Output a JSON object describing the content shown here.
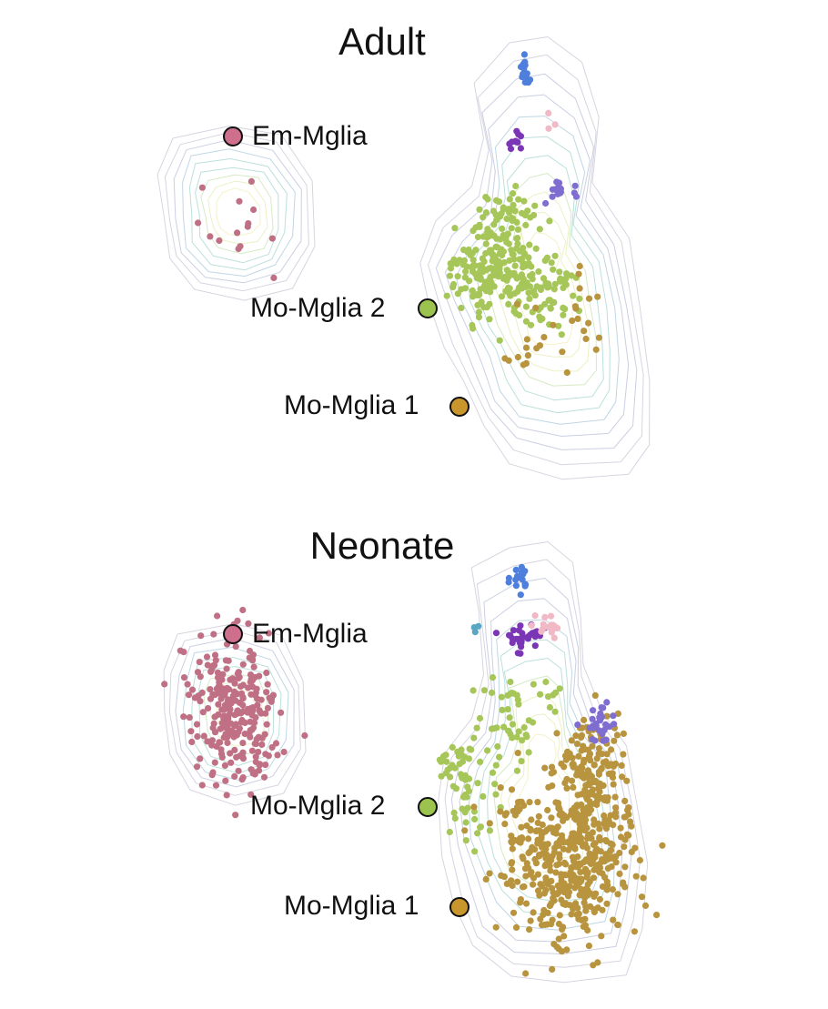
{
  "chart_data": [
    {
      "type": "scatter",
      "title": "Adult",
      "legend": [
        {
          "name": "Em-Mglia",
          "color": "#cd6f8d"
        },
        {
          "name": "Mo-Mglia 2",
          "color": "#9cc34d"
        },
        {
          "name": "Mo-Mglia 1",
          "color": "#c9962e"
        }
      ],
      "series": [
        {
          "name": "Em-Mglia",
          "color": "#c07084",
          "count": 14
        },
        {
          "name": "Mo-Mglia 2",
          "color": "#a6c659",
          "count": 300
        },
        {
          "name": "Mo-Mglia 1",
          "color": "#b8943e",
          "count": 30
        },
        {
          "color": "#4f7fdc",
          "count": 14
        },
        {
          "color": "#7a36b5",
          "count": 10
        },
        {
          "color": "#7f6dd0",
          "count": 14
        },
        {
          "color": "#f0b9c5",
          "count": 3
        }
      ]
    },
    {
      "type": "scatter",
      "title": "Neonate",
      "legend": [
        {
          "name": "Em-Mglia",
          "color": "#cd6f8d"
        },
        {
          "name": "Mo-Mglia 2",
          "color": "#9cc34d"
        },
        {
          "name": "Mo-Mglia 1",
          "color": "#c9962e"
        }
      ],
      "series": [
        {
          "name": "Em-Mglia",
          "color": "#c07084",
          "count": 260
        },
        {
          "name": "Mo-Mglia 2",
          "color": "#a6c659",
          "count": 110
        },
        {
          "name": "Mo-Mglia 1",
          "color": "#b8943e",
          "count": 600
        },
        {
          "color": "#4f7fdc",
          "count": 16
        },
        {
          "color": "#7a36b5",
          "count": 30
        },
        {
          "color": "#7f6dd0",
          "count": 26
        },
        {
          "color": "#f0b9c5",
          "count": 18
        },
        {
          "color": "#5aa7c4",
          "count": 3
        }
      ]
    }
  ]
}
